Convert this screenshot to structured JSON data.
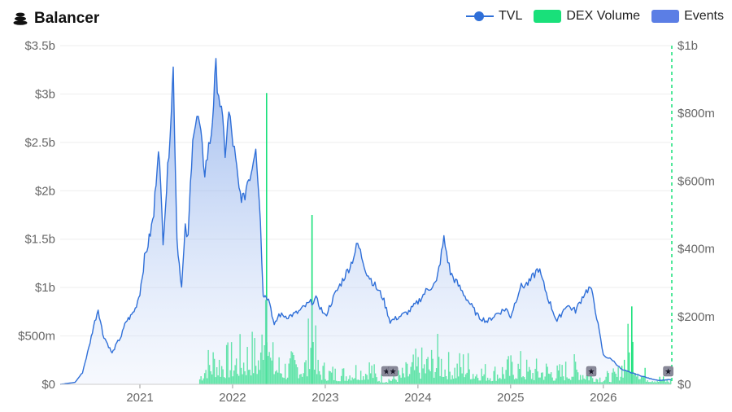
{
  "header": {
    "title": "Balancer",
    "icon": "stack-icon"
  },
  "legend": [
    {
      "label": "TVL",
      "color": "#2f6fd8",
      "kind": "line"
    },
    {
      "label": "DEX Volume",
      "color": "#19e07a",
      "kind": "box"
    },
    {
      "label": "Events",
      "color": "#5b7ee5",
      "kind": "box"
    }
  ],
  "chart_data": {
    "type": "line",
    "title": "Balancer",
    "left_axis": {
      "ticks": [
        "$0",
        "$500m",
        "$1b",
        "$1.5b",
        "$2b",
        "$2.5b",
        "$3b",
        "$3.5b"
      ],
      "values": [
        0,
        500,
        1000,
        1500,
        2000,
        2500,
        3000,
        3500
      ],
      "unit": "millions USD"
    },
    "right_axis": {
      "ticks": [
        "$0",
        "$200m",
        "$400m",
        "$600m",
        "$800m",
        "$1b"
      ],
      "values": [
        0,
        200,
        400,
        600,
        800,
        1000
      ],
      "unit": "millions USD"
    },
    "x_ticks": [
      "2021",
      "2022",
      "2023",
      "2024",
      "2025",
      "2026"
    ],
    "x_range": [
      2020.14,
      2026.73
    ],
    "series": [
      {
        "name": "TVL",
        "axis": "left",
        "color": "#2f6fd8",
        "x": [
          2020.14,
          2020.3,
          2020.38,
          2020.45,
          2020.5,
          2020.55,
          2020.6,
          2020.65,
          2020.7,
          2020.75,
          2020.8,
          2020.85,
          2020.9,
          2020.95,
          2021.0,
          2021.05,
          2021.1,
          2021.15,
          2021.2,
          2021.25,
          2021.3,
          2021.34,
          2021.36,
          2021.4,
          2021.45,
          2021.49,
          2021.52,
          2021.57,
          2021.63,
          2021.7,
          2021.77,
          2021.82,
          2021.88,
          2021.92,
          2021.96,
          2022.02,
          2022.07,
          2022.12,
          2022.16,
          2022.2,
          2022.25,
          2022.3,
          2022.33,
          2022.35,
          2022.4,
          2022.45,
          2022.5,
          2022.6,
          2022.7,
          2022.8,
          2022.9,
          2023.0,
          2023.1,
          2023.2,
          2023.28,
          2023.35,
          2023.45,
          2023.55,
          2023.62,
          2023.7,
          2023.8,
          2023.9,
          2024.0,
          2024.1,
          2024.2,
          2024.28,
          2024.35,
          2024.45,
          2024.55,
          2024.65,
          2024.75,
          2024.85,
          2024.95,
          2025.0,
          2025.1,
          2025.2,
          2025.3,
          2025.4,
          2025.5,
          2025.6,
          2025.7,
          2025.8,
          2025.86,
          2025.9,
          2026.0,
          2026.1,
          2026.2,
          2026.3,
          2026.4,
          2026.5,
          2026.6,
          2026.73
        ],
        "y": [
          0,
          20,
          120,
          380,
          600,
          780,
          520,
          420,
          320,
          420,
          500,
          650,
          700,
          780,
          950,
          1300,
          1500,
          1750,
          2500,
          1500,
          2200,
          2900,
          3250,
          1500,
          1000,
          1600,
          1500,
          2600,
          2750,
          2200,
          2600,
          3250,
          2800,
          2400,
          2800,
          2400,
          2000,
          1900,
          2100,
          2200,
          2500,
          1700,
          900,
          950,
          850,
          600,
          720,
          700,
          740,
          820,
          880,
          700,
          920,
          1100,
          1250,
          1450,
          1150,
          1000,
          900,
          650,
          700,
          750,
          850,
          980,
          1050,
          1500,
          1150,
          1000,
          850,
          700,
          650,
          730,
          780,
          700,
          1000,
          1050,
          1200,
          900,
          650,
          820,
          760,
          950,
          1000,
          850,
          300,
          250,
          150,
          120,
          90,
          60,
          40,
          50
        ]
      },
      {
        "name": "DEX Volume",
        "axis": "right",
        "color": "#19e07a",
        "x": [
          2021.64,
          2021.7,
          2021.8,
          2021.9,
          2022.0,
          2022.1,
          2022.2,
          2022.3,
          2022.36,
          2022.4,
          2022.5,
          2022.6,
          2022.7,
          2022.8,
          2022.85,
          2022.9,
          2023.0,
          2023.1,
          2023.2,
          2023.3,
          2023.4,
          2023.48,
          2023.55,
          2023.65,
          2023.75,
          2023.85,
          2023.95,
          2024.05,
          2024.15,
          2024.22,
          2024.3,
          2024.4,
          2024.5,
          2024.6,
          2024.7,
          2024.8,
          2024.9,
          2025.0,
          2025.1,
          2025.2,
          2025.3,
          2025.4,
          2025.5,
          2025.6,
          2025.7,
          2025.8,
          2025.88,
          2025.95,
          2026.05,
          2026.15,
          2026.2,
          2026.3,
          2026.4,
          2026.5,
          2026.6,
          2026.73
        ],
        "y": [
          40,
          110,
          140,
          120,
          130,
          150,
          170,
          140,
          860,
          140,
          100,
          90,
          120,
          110,
          500,
          90,
          70,
          60,
          60,
          80,
          80,
          100,
          40,
          30,
          40,
          60,
          100,
          110,
          120,
          150,
          100,
          90,
          120,
          80,
          70,
          60,
          80,
          90,
          100,
          70,
          80,
          80,
          60,
          80,
          90,
          70,
          50,
          40,
          40,
          50,
          120,
          230,
          60,
          40,
          30,
          20
        ]
      }
    ],
    "events": [
      {
        "x": 2023.66,
        "label": "★"
      },
      {
        "x": 2023.73,
        "label": "★"
      },
      {
        "x": 2025.87,
        "label": "★"
      },
      {
        "x": 2026.7,
        "label": "★"
      }
    ],
    "grid": true,
    "legend_position": "top-right"
  }
}
